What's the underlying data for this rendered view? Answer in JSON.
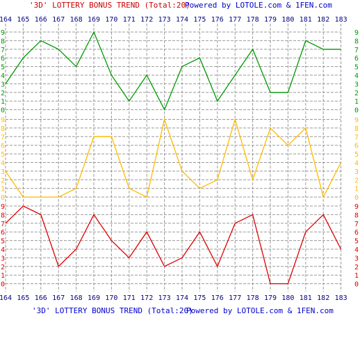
{
  "header": {
    "caption": "'3D' LOTTERY BONUS TREND (Total:20)",
    "powered": "Powered by LOTOLE.com & 1FEN.com"
  },
  "footer": {
    "caption": "'3D' LOTTERY BONUS TREND (Total:20)",
    "powered": "Powered by LOTOLE.com & 1FEN.com"
  },
  "colors": {
    "red": "#cc0000",
    "blue": "#0000cc",
    "issue": "#000080",
    "grid": "#999999",
    "top_band": "#009900",
    "middle_band": "#ffbb00",
    "bottom_band": "#dd0000"
  },
  "chart_data": {
    "type": "line",
    "x": [
      "164",
      "165",
      "166",
      "167",
      "168",
      "169",
      "170",
      "171",
      "172",
      "173",
      "174",
      "175",
      "176",
      "177",
      "178",
      "179",
      "180",
      "181",
      "182",
      "183"
    ],
    "ylim": [
      0,
      9
    ],
    "y_ticks": [
      "0",
      "1",
      "2",
      "3",
      "4",
      "5",
      "6",
      "7",
      "8",
      "9"
    ],
    "grid": true,
    "series": [
      {
        "band": "top",
        "values": [
          3,
          6,
          8,
          7,
          5,
          9,
          4,
          1,
          4,
          0,
          5,
          6,
          1,
          4,
          7,
          2,
          2,
          8,
          7,
          7
        ]
      },
      {
        "band": "middle",
        "values": [
          3,
          0,
          0,
          0,
          1,
          7,
          7,
          1,
          0,
          9,
          3,
          1,
          2,
          9,
          2,
          8,
          6,
          8,
          0,
          4
        ]
      },
      {
        "band": "bottom",
        "values": [
          7,
          9,
          8,
          2,
          4,
          8,
          5,
          3,
          6,
          2,
          3,
          6,
          2,
          7,
          8,
          0,
          0,
          6,
          8,
          4
        ]
      }
    ]
  }
}
